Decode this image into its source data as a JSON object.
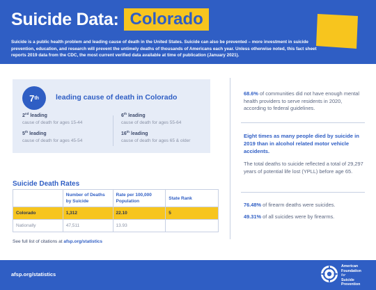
{
  "header": {
    "title": "Suicide Data:",
    "state": "Colorado",
    "intro": "Suicide is a public health problem and leading cause of death in the United States. Suicide can also be prevented – more investment in suicide prevention, education, and research will prevent the untimely deaths of thousands of Americans each year. Unless otherwise noted, this fact sheet reports 2019 data from the CDC, the most current verified data available at time of publication (January 2021).",
    "colors": {
      "brand_blue": "#2f5ec4",
      "accent_yellow": "#f7c51e"
    }
  },
  "leading_cause": {
    "rank_number": "7",
    "rank_suffix": "th",
    "title": "leading cause of death in Colorado",
    "items": [
      {
        "num": "2",
        "suffix": "nd",
        "word": "leading",
        "desc": "cause of death for ages 15-44"
      },
      {
        "num": "6",
        "suffix": "th",
        "word": "leading",
        "desc": "cause of death for ages 55-64"
      },
      {
        "num": "5",
        "suffix": "th",
        "word": "leading",
        "desc": "cause of death for ages 45-54"
      },
      {
        "num": "16",
        "suffix": "th",
        "word": "leading",
        "desc": "cause of death for ages 65 & older"
      }
    ]
  },
  "rates": {
    "title": "Suicide Death Rates",
    "headers": [
      "",
      "Number of Deaths by Suicide",
      "Rate per 100,000 Population",
      "State Rank"
    ],
    "rows": [
      {
        "label": "Colorado",
        "deaths": "1,312",
        "rate": "22.10",
        "rank": "5"
      },
      {
        "label": "Nationally",
        "deaths": "47,511",
        "rate": "13.93",
        "rank": ""
      }
    ]
  },
  "citations": {
    "prefix": "See full list of citations at",
    "link": "afsp.org/statistics"
  },
  "right": {
    "stat1_value": "68.6%",
    "stat1_text": "of communities did not have enough mental health providers to serve residents in 2020, according to federal guidelines.",
    "stat2_bold": "Eight times as many people died by suicide in 2019 than in alcohol related motor vehicle accidents.",
    "stat3_text": "The total deaths to suicide reflected a total of 29,297 years of potential life lost (YPLL) before age 65.",
    "stat4_value": "76.48%",
    "stat4_text": "of firearm deaths were suicides.",
    "stat5_value": "49.31%",
    "stat5_text": "of all suicides were by firearms."
  },
  "footer": {
    "url": "afsp.org/statistics",
    "org_line1": "American",
    "org_line2": "Foundation",
    "org_line3": "for",
    "org_line4": "Suicide",
    "org_line5": "Prevention"
  },
  "icons": [
    "colorado-state-shape",
    "afsp-logo-icon"
  ]
}
